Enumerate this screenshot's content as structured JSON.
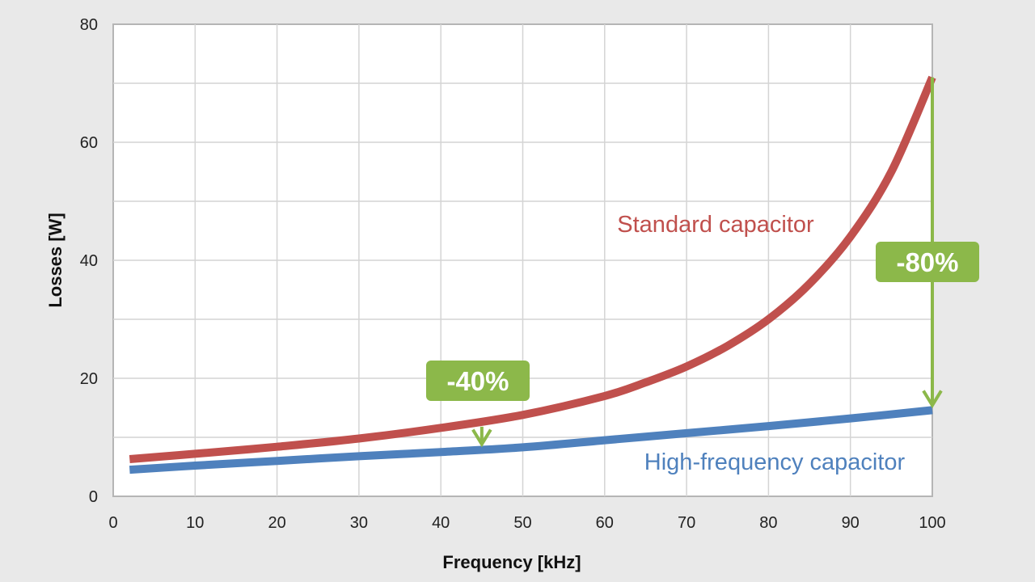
{
  "chart_data": {
    "type": "line",
    "title": "",
    "xlabel": "Frequency [kHz]",
    "ylabel": "Losses [W]",
    "xlim": [
      0,
      100
    ],
    "ylim": [
      0,
      80
    ],
    "xticks": [
      0,
      10,
      20,
      30,
      40,
      50,
      60,
      70,
      80,
      90,
      100
    ],
    "yticks": [
      0,
      20,
      40,
      60,
      80
    ],
    "grid": true,
    "legend": "none",
    "series": [
      {
        "name": "Standard capacitor",
        "color": "#c0504d",
        "x": [
          2,
          10,
          20,
          30,
          40,
          50,
          60,
          65,
          70,
          75,
          80,
          85,
          90,
          95,
          100
        ],
        "y": [
          6.3,
          7.2,
          8.4,
          9.8,
          11.6,
          13.8,
          17.0,
          19.3,
          22.0,
          25.5,
          30.0,
          36.0,
          44.0,
          55.0,
          71.0
        ]
      },
      {
        "name": "High-frequency capacitor",
        "color": "#4f81bd",
        "x": [
          2,
          10,
          20,
          30,
          40,
          50,
          60,
          70,
          80,
          90,
          100
        ],
        "y": [
          4.5,
          5.2,
          6.0,
          6.8,
          7.5,
          8.3,
          9.5,
          10.7,
          11.9,
          13.2,
          14.6
        ]
      }
    ],
    "annotations": [
      {
        "text": "-40%",
        "x": 45,
        "arrow_from": 11.8,
        "arrow_to": 8.0,
        "color": "#8cb84a"
      },
      {
        "text": "-80%",
        "x": 100,
        "arrow_from": 71.0,
        "arrow_to": 14.6,
        "color": "#8cb84a"
      }
    ]
  }
}
